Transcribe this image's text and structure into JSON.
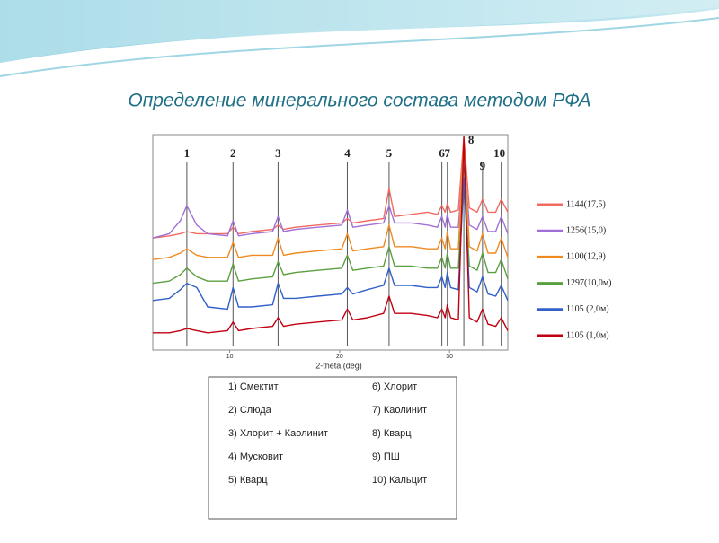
{
  "title": "Определение минерального состава методом РФА",
  "chart_data": {
    "type": "line",
    "xlabel": "2-theta (deg)",
    "xlim": [
      3,
      35.3
    ],
    "xticks": [
      10,
      20,
      30
    ],
    "ylim": [
      0,
      100
    ],
    "x": [
      3,
      4.5,
      5.5,
      6.1,
      7,
      8,
      9.8,
      10.3,
      10.8,
      12,
      13.9,
      14.4,
      14.9,
      16,
      18,
      20.2,
      20.7,
      21.2,
      22.5,
      24,
      24.5,
      25,
      26.5,
      28,
      28.9,
      29.3,
      29.6,
      29.8,
      30.1,
      30.8,
      31.3,
      31.8,
      32.5,
      33.0,
      33.5,
      34.2,
      34.7,
      35.3
    ],
    "series": [
      {
        "name": "1144(17,5)",
        "color": "#f06a60",
        "values": [
          52,
          53,
          54,
          55,
          54,
          54,
          54,
          57,
          54,
          55,
          56,
          58,
          56,
          57,
          58,
          59,
          61,
          59,
          60,
          61,
          75,
          62,
          63,
          64,
          63,
          67,
          64,
          68,
          64,
          65,
          99,
          66,
          64,
          70,
          64,
          64,
          70,
          64
        ]
      },
      {
        "name": "1256(15,0)",
        "color": "#a070d8",
        "values": [
          52,
          54,
          60,
          67,
          58,
          54,
          53,
          60,
          53,
          54,
          55,
          62,
          55,
          56,
          57,
          58,
          65,
          57,
          58,
          59,
          67,
          59,
          59,
          58,
          57,
          62,
          57,
          63,
          57,
          57,
          90,
          58,
          56,
          62,
          55,
          55,
          62,
          54
        ]
      },
      {
        "name": "1100(12,9)",
        "color": "#f08a20",
        "values": [
          42,
          43,
          45,
          47,
          44,
          43,
          43,
          50,
          43,
          44,
          44,
          52,
          44,
          45,
          46,
          47,
          54,
          46,
          47,
          48,
          58,
          48,
          48,
          47,
          47,
          52,
          47,
          55,
          47,
          47,
          98,
          48,
          46,
          54,
          45,
          45,
          52,
          43
        ]
      },
      {
        "name": "1297(10,0м)",
        "color": "#5aa040",
        "values": [
          31,
          32,
          35,
          38,
          34,
          32,
          32,
          40,
          32,
          33,
          34,
          41,
          35,
          36,
          37,
          38,
          44,
          37,
          38,
          39,
          48,
          39,
          39,
          38,
          38,
          43,
          38,
          45,
          38,
          38,
          81,
          39,
          37,
          45,
          36,
          36,
          42,
          33
        ]
      },
      {
        "name": "1105 (2,0м)",
        "color": "#3060c8",
        "values": [
          23,
          24,
          28,
          31,
          29,
          20,
          19,
          29,
          20,
          20,
          21,
          31,
          24,
          24,
          25,
          26,
          29,
          26,
          28,
          30,
          38,
          30,
          30,
          29,
          29,
          34,
          29,
          36,
          29,
          28,
          80,
          29,
          27,
          34,
          26,
          25,
          30,
          23
        ]
      },
      {
        "name": "1105 (1,0м)",
        "color": "#c00010",
        "values": [
          8,
          8,
          9,
          10,
          9,
          8,
          9,
          13,
          9,
          10,
          11,
          15,
          11,
          12,
          13,
          14,
          19,
          14,
          15,
          17,
          25,
          17,
          17,
          16,
          15,
          19,
          15,
          21,
          15,
          14,
          99,
          15,
          13,
          19,
          12,
          11,
          15,
          9
        ]
      }
    ],
    "peaks": [
      {
        "label": "1",
        "x": 6.1
      },
      {
        "label": "2",
        "x": 10.3
      },
      {
        "label": "3",
        "x": 14.4
      },
      {
        "label": "4",
        "x": 20.7
      },
      {
        "label": "5",
        "x": 24.5
      },
      {
        "label": "6",
        "x": 29.3
      },
      {
        "label": "7",
        "x": 29.8
      },
      {
        "label": "8",
        "x": 31.3
      },
      {
        "label": "9",
        "x": 33.0
      },
      {
        "label": "10",
        "x": 34.7
      }
    ]
  },
  "key": [
    "1) Смектит",
    "2) Слюда",
    "3)  Хлорит + Каолинит",
    "4) Мусковит",
    "5) Кварц",
    "6) Хлорит",
    "7) Каолинит",
    "8) Кварц",
    "9) ПШ",
    "10) Кальцит"
  ]
}
